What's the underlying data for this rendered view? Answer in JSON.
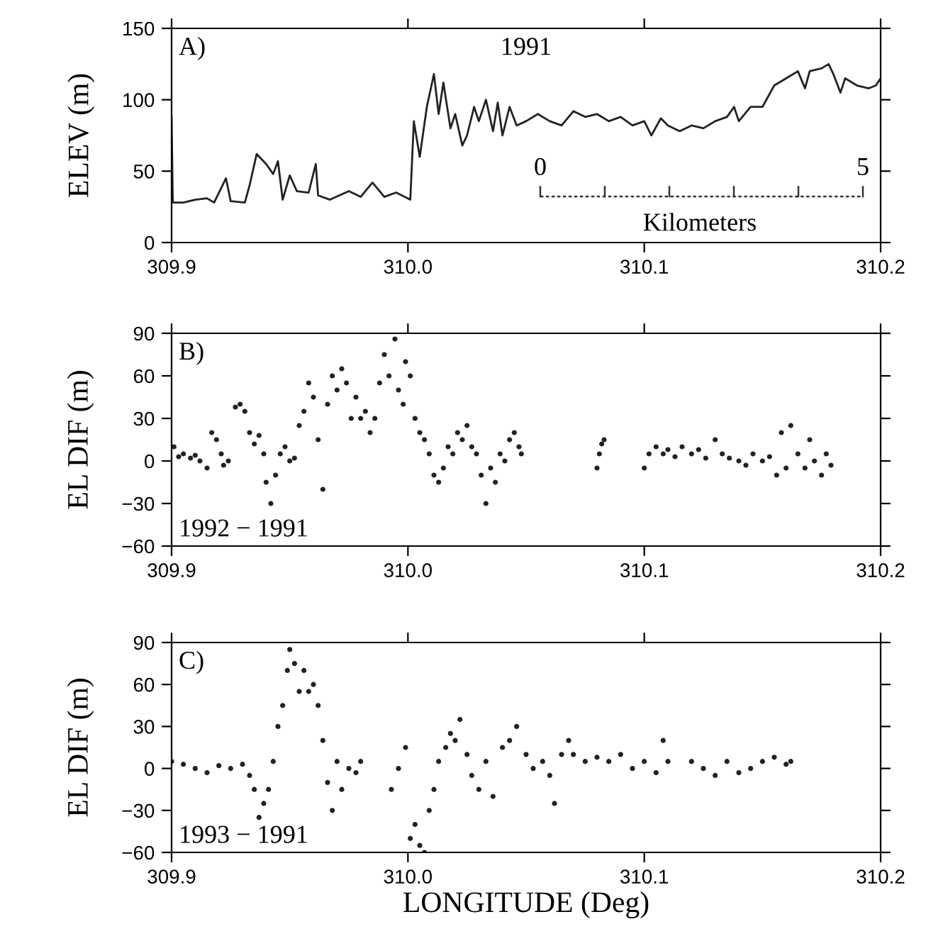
{
  "chart_data": [
    {
      "type": "line",
      "ylabel": "ELEV (m)",
      "color": "#222222",
      "line_style": "solid",
      "marker": "none",
      "annotations": [
        "A)",
        "1991",
        "0",
        "5",
        "Kilometers"
      ],
      "x": [
        309.9,
        309.9005,
        309.905,
        309.91,
        309.915,
        309.918,
        309.923,
        309.925,
        309.931,
        309.933,
        309.936,
        309.94,
        309.943,
        309.945,
        309.947,
        309.95,
        309.953,
        309.958,
        309.961,
        309.962,
        309.967,
        309.975,
        309.98,
        309.985,
        309.99,
        309.995,
        310.001,
        310.0025,
        310.005,
        310.008,
        310.011,
        310.013,
        310.015,
        310.018,
        310.02,
        310.023,
        310.025,
        310.028,
        310.03,
        310.033,
        310.036,
        310.038,
        310.04,
        310.043,
        310.046,
        310.05,
        310.055,
        310.06,
        310.065,
        310.07,
        310.075,
        310.08,
        310.085,
        310.09,
        310.095,
        310.1,
        310.103,
        310.107,
        310.11,
        310.115,
        310.12,
        310.125,
        310.13,
        310.135,
        310.138,
        310.14,
        310.145,
        310.15,
        310.155,
        310.16,
        310.165,
        310.168,
        310.17,
        310.175,
        310.178,
        310.18,
        310.183,
        310.185,
        310.19,
        310.195,
        310.198,
        310.2
      ],
      "values": [
        88,
        28,
        28,
        30,
        31,
        28,
        45,
        29,
        28,
        40,
        62,
        55,
        48,
        57,
        30,
        47,
        36,
        35,
        55,
        33,
        30,
        36,
        32,
        42,
        32,
        35,
        30,
        85,
        60,
        95,
        118,
        90,
        112,
        80,
        90,
        68,
        75,
        95,
        85,
        100,
        78,
        98,
        75,
        95,
        82,
        85,
        90,
        85,
        82,
        92,
        88,
        90,
        85,
        88,
        82,
        85,
        75,
        87,
        82,
        78,
        82,
        80,
        85,
        88,
        95,
        85,
        95,
        95,
        110,
        115,
        120,
        108,
        120,
        122,
        125,
        118,
        105,
        115,
        110,
        108,
        110,
        115
      ],
      "xlim": [
        309.9,
        310.2
      ],
      "xticks": [
        {
          "value": 309.9,
          "label": "309.9"
        },
        {
          "value": 310.0,
          "label": "310.0"
        },
        {
          "value": 310.1,
          "label": "310.1"
        },
        {
          "value": 310.2,
          "label": "310.2"
        }
      ],
      "ylim": [
        0,
        150
      ],
      "yticks": [
        0,
        50,
        100,
        150
      ]
    },
    {
      "type": "scatter",
      "ylabel": "EL DIF (m)",
      "color": "#222222",
      "marker": "circle",
      "annotations": [
        "B)",
        "1992 − 1991"
      ],
      "x": [
        309.901,
        309.903,
        309.905,
        309.908,
        309.91,
        309.912,
        309.915,
        309.917,
        309.919,
        309.921,
        309.922,
        309.924,
        309.927,
        309.929,
        309.931,
        309.933,
        309.935,
        309.937,
        309.939,
        309.94,
        309.942,
        309.944,
        309.946,
        309.948,
        309.95,
        309.952,
        309.954,
        309.956,
        309.958,
        309.96,
        309.962,
        309.964,
        309.966,
        309.968,
        309.97,
        309.972,
        309.974,
        309.976,
        309.978,
        309.98,
        309.982,
        309.984,
        309.986,
        309.988,
        309.99,
        309.992,
        309.9945,
        309.996,
        309.998,
        309.999,
        310.001,
        310.003,
        310.005,
        310.007,
        310.009,
        310.011,
        310.013,
        310.015,
        310.017,
        310.019,
        310.021,
        310.023,
        310.025,
        310.027,
        310.029,
        310.031,
        310.033,
        310.035,
        310.037,
        310.039,
        310.041,
        310.043,
        310.045,
        310.047,
        310.048,
        310.08,
        310.081,
        310.082,
        310.083,
        310.1,
        310.102,
        310.105,
        310.108,
        310.11,
        310.113,
        310.116,
        310.12,
        310.123,
        310.126,
        310.13,
        310.133,
        310.136,
        310.14,
        310.143,
        310.146,
        310.15,
        310.153,
        310.156,
        310.158,
        310.16,
        310.162,
        310.165,
        310.168,
        310.17,
        310.172,
        310.175,
        310.177,
        310.179
      ],
      "values": [
        10,
        3,
        5,
        2,
        4,
        0,
        -5,
        20,
        15,
        5,
        -3,
        0,
        38,
        40,
        35,
        20,
        12,
        18,
        5,
        -15,
        -30,
        -10,
        5,
        10,
        0,
        2,
        25,
        35,
        55,
        45,
        15,
        -20,
        40,
        60,
        50,
        65,
        55,
        30,
        45,
        30,
        35,
        20,
        30,
        55,
        75,
        60,
        86,
        50,
        40,
        70,
        60,
        30,
        20,
        15,
        5,
        -10,
        -15,
        -5,
        10,
        5,
        20,
        15,
        25,
        10,
        5,
        -10,
        -30,
        -5,
        -15,
        5,
        0,
        15,
        20,
        10,
        5,
        -5,
        5,
        12,
        15,
        -5,
        5,
        10,
        5,
        8,
        3,
        10,
        5,
        8,
        2,
        15,
        5,
        2,
        0,
        -3,
        5,
        0,
        3,
        -10,
        20,
        -5,
        25,
        5,
        -5,
        15,
        0,
        -10,
        5,
        -3
      ],
      "xlim": [
        309.9,
        310.2
      ],
      "xticks": [
        {
          "value": 309.9,
          "label": "309.9"
        },
        {
          "value": 310.0,
          "label": "310.0"
        },
        {
          "value": 310.1,
          "label": "310.1"
        },
        {
          "value": 310.2,
          "label": "310.2"
        }
      ],
      "ylim": [
        -60,
        90
      ],
      "yticks": [
        -60,
        -30,
        0,
        30,
        60,
        90
      ]
    },
    {
      "type": "scatter",
      "ylabel": "EL DIF (m)",
      "xlabel": "LONGITUDE (Deg)",
      "color": "#222222",
      "marker": "circle",
      "annotations": [
        "C)",
        "1993 − 1991"
      ],
      "x": [
        309.9,
        309.905,
        309.91,
        309.915,
        309.92,
        309.925,
        309.93,
        309.933,
        309.935,
        309.937,
        309.939,
        309.941,
        309.943,
        309.945,
        309.947,
        309.949,
        309.95,
        309.952,
        309.954,
        309.956,
        309.958,
        309.96,
        309.962,
        309.964,
        309.966,
        309.968,
        309.97,
        309.972,
        309.975,
        309.978,
        309.98,
        309.993,
        309.996,
        309.999,
        310.001,
        310.003,
        310.005,
        310.007,
        310.009,
        310.011,
        310.013,
        310.016,
        310.018,
        310.02,
        310.022,
        310.025,
        310.027,
        310.03,
        310.033,
        310.036,
        310.04,
        310.043,
        310.046,
        310.05,
        310.053,
        310.057,
        310.06,
        310.062,
        310.065,
        310.068,
        310.07,
        310.075,
        310.08,
        310.085,
        310.09,
        310.095,
        310.1,
        310.105,
        310.108,
        310.11,
        310.12,
        310.125,
        310.13,
        310.135,
        310.14,
        310.145,
        310.15,
        310.155,
        310.16,
        310.162
      ],
      "values": [
        5,
        3,
        0,
        -3,
        2,
        0,
        3,
        -5,
        -15,
        -35,
        -25,
        -15,
        5,
        30,
        45,
        70,
        85,
        75,
        55,
        70,
        55,
        60,
        45,
        20,
        -10,
        -30,
        5,
        -15,
        0,
        -3,
        5,
        -15,
        0,
        15,
        -50,
        -40,
        -55,
        -60,
        -30,
        -15,
        5,
        15,
        25,
        20,
        35,
        10,
        -5,
        -15,
        5,
        -20,
        15,
        20,
        30,
        10,
        0,
        5,
        -5,
        -25,
        10,
        20,
        10,
        5,
        8,
        5,
        10,
        0,
        5,
        -3,
        20,
        5,
        5,
        0,
        -5,
        5,
        -3,
        0,
        5,
        8,
        3,
        5
      ],
      "xlim": [
        309.9,
        310.2
      ],
      "xticks": [
        {
          "value": 309.9,
          "label": "309.9"
        },
        {
          "value": 310.0,
          "label": "310.0"
        },
        {
          "value": 310.1,
          "label": "310.1"
        },
        {
          "value": 310.2,
          "label": "310.2"
        }
      ],
      "ylim": [
        -60,
        90
      ],
      "yticks": [
        -60,
        -30,
        0,
        30,
        60,
        90
      ]
    }
  ]
}
